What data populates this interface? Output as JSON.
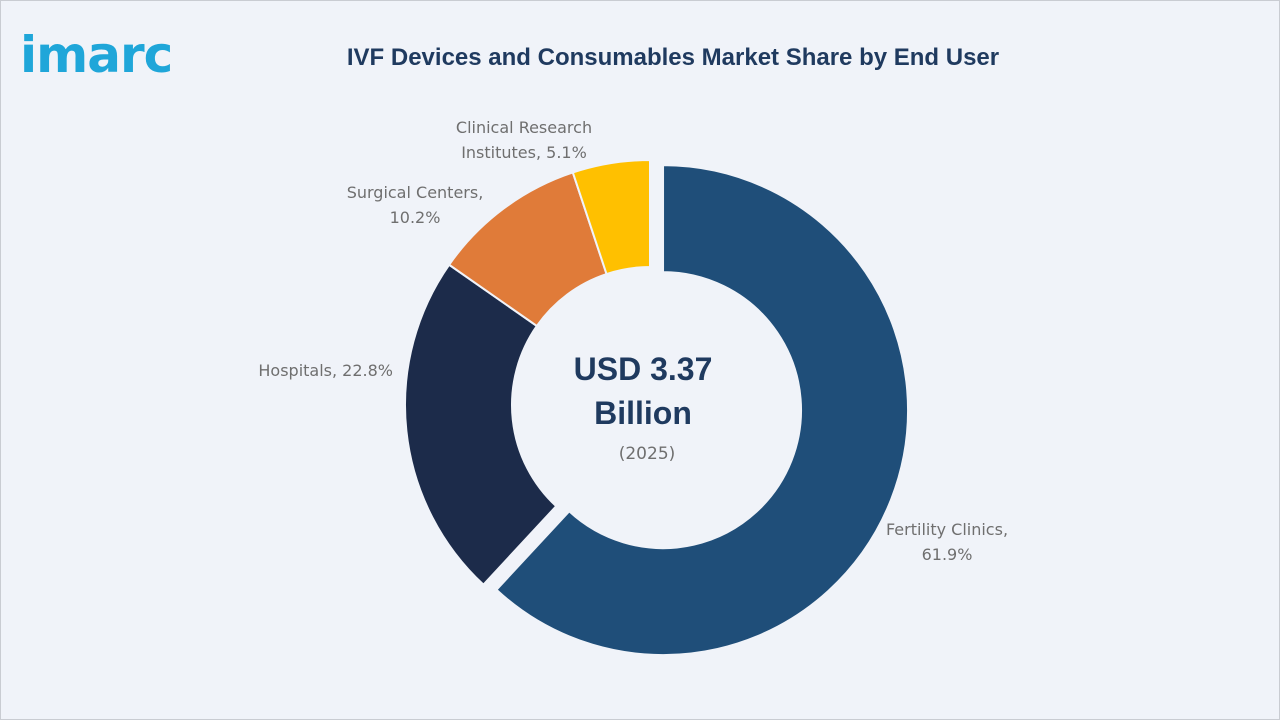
{
  "brand": {
    "logo_text": "imarc",
    "logo_color": "#1fa6d9"
  },
  "title": "IVF Devices and Consumables Market Share by End User",
  "center": {
    "line1": "USD 3.37",
    "line2": "Billion",
    "line3": "(2025)"
  },
  "chart_data": {
    "type": "pie",
    "variant": "donut",
    "title": "IVF Devices and Consumables Market Share by End User",
    "unit": "%",
    "categories": [
      "Fertility Clinics",
      "Hospitals",
      "Surgical Centers",
      "Clinical Research Institutes"
    ],
    "values": [
      61.9,
      22.8,
      10.2,
      5.1
    ],
    "colors": [
      "#1f4e79",
      "#1c2b4a",
      "#e07b39",
      "#ffc000"
    ],
    "labels": [
      [
        "Fertility Clinics,",
        "61.9%"
      ],
      [
        "Hospitals, 22.8%"
      ],
      [
        "Surgical Centers,",
        "10.2%"
      ],
      [
        "Clinical Research",
        "Institutes, 5.1%"
      ]
    ],
    "exploded": "Fertility Clinics"
  }
}
